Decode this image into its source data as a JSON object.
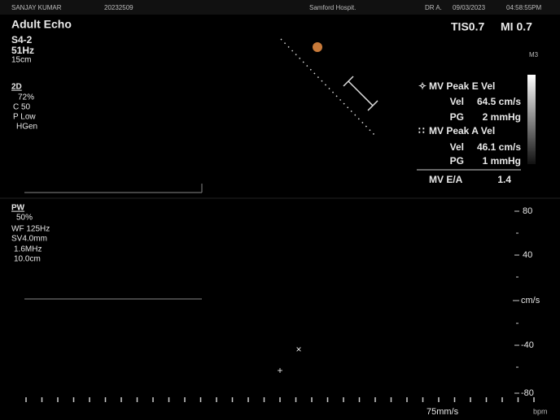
{
  "header": {
    "patient": "SANJAY KUMAR",
    "id": "20232509",
    "hospital": "Samford Hospit.",
    "doctor": "DR A.",
    "date": "09/03/2023",
    "time": "04:58:55PM"
  },
  "preset": {
    "title": "Adult Echo",
    "probe": "S4-2",
    "frame_rate": "51Hz",
    "depth": "15cm",
    "tis": "TIS0.7",
    "mi": "MI 0.7",
    "map": "M3"
  },
  "mode_2d": {
    "label": "2D",
    "gain": "72%",
    "compression": "C 50",
    "power": "P Low",
    "frequency": "HGen"
  },
  "mode_pw": {
    "label": "PW",
    "gain": "50%",
    "wall_filter": "WF 125Hz",
    "sample_volume": "SV4.0mm",
    "frequency": "1.6MHz",
    "depth": "10.0cm"
  },
  "measurements": [
    {
      "label": "MV Peak E Vel",
      "rows": [
        {
          "label": "Vel",
          "value": "64.5 cm/s"
        },
        {
          "label": "PG",
          "value": "2 mmHg"
        }
      ]
    },
    {
      "label": "MV Peak A Vel",
      "rows": [
        {
          "label": "Vel",
          "value": "46.1 cm/s"
        },
        {
          "label": "PG",
          "value": "1 mmHg"
        }
      ]
    }
  ],
  "ratio": {
    "label": "MV E/A",
    "value": "1.4"
  },
  "scale": [
    "80",
    "40",
    "cm/s",
    "-40",
    "-80"
  ],
  "footer": {
    "sweep": "75mm/s",
    "heart_rate": "bpm"
  }
}
